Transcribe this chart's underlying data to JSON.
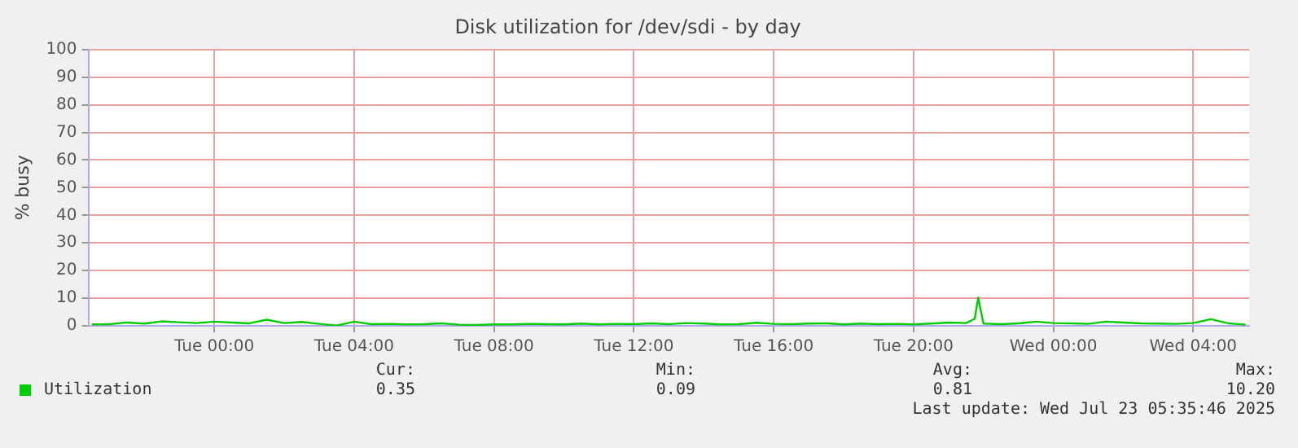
{
  "chart_data": {
    "type": "line",
    "title": "Disk utilization for /dev/sdi - by day",
    "ylabel": "% busy",
    "x": [
      "2025-07-21T20:30",
      "2025-07-21T21:00",
      "2025-07-21T21:30",
      "2025-07-21T22:00",
      "2025-07-21T22:30",
      "2025-07-21T23:00",
      "2025-07-21T23:30",
      "2025-07-22T00:00",
      "2025-07-22T00:30",
      "2025-07-22T01:00",
      "2025-07-22T01:30",
      "2025-07-22T02:00",
      "2025-07-22T02:30",
      "2025-07-22T03:00",
      "2025-07-22T03:30",
      "2025-07-22T04:00",
      "2025-07-22T04:30",
      "2025-07-22T05:00",
      "2025-07-22T05:30",
      "2025-07-22T06:00",
      "2025-07-22T06:30",
      "2025-07-22T07:00",
      "2025-07-22T07:30",
      "2025-07-22T08:00",
      "2025-07-22T08:30",
      "2025-07-22T09:00",
      "2025-07-22T09:30",
      "2025-07-22T10:00",
      "2025-07-22T10:30",
      "2025-07-22T11:00",
      "2025-07-22T11:30",
      "2025-07-22T12:00",
      "2025-07-22T12:30",
      "2025-07-22T13:00",
      "2025-07-22T13:30",
      "2025-07-22T14:00",
      "2025-07-22T14:30",
      "2025-07-22T15:00",
      "2025-07-22T15:30",
      "2025-07-22T16:00",
      "2025-07-22T16:30",
      "2025-07-22T17:00",
      "2025-07-22T17:30",
      "2025-07-22T18:00",
      "2025-07-22T18:30",
      "2025-07-22T19:00",
      "2025-07-22T19:30",
      "2025-07-22T20:00",
      "2025-07-22T20:30",
      "2025-07-22T21:00",
      "2025-07-22T21:30",
      "2025-07-22T21:45",
      "2025-07-22T21:51",
      "2025-07-22T22:00",
      "2025-07-22T22:30",
      "2025-07-22T23:00",
      "2025-07-22T23:30",
      "2025-07-23T00:00",
      "2025-07-23T00:30",
      "2025-07-23T01:00",
      "2025-07-23T01:30",
      "2025-07-23T02:00",
      "2025-07-23T02:30",
      "2025-07-23T03:00",
      "2025-07-23T03:30",
      "2025-07-23T04:00",
      "2025-07-23T04:30",
      "2025-07-23T05:00",
      "2025-07-23T05:30"
    ],
    "series": [
      {
        "name": "Utilization",
        "color": "#00cc00",
        "values": [
          0.5,
          0.6,
          1.2,
          0.8,
          1.6,
          1.3,
          1.0,
          1.5,
          1.2,
          0.9,
          2.2,
          1.0,
          1.4,
          0.7,
          0.1,
          1.5,
          0.6,
          0.7,
          0.5,
          0.6,
          0.9,
          0.4,
          0.3,
          0.5,
          0.5,
          0.7,
          0.6,
          0.5,
          0.8,
          0.5,
          0.7,
          0.6,
          0.9,
          0.6,
          1.0,
          0.8,
          0.5,
          0.6,
          1.1,
          0.7,
          0.6,
          0.8,
          0.9,
          0.5,
          0.8,
          0.6,
          0.7,
          0.5,
          0.8,
          1.2,
          1.0,
          2.5,
          10.2,
          0.8,
          0.6,
          0.9,
          1.5,
          1.0,
          0.9,
          0.7,
          1.5,
          1.2,
          0.9,
          0.8,
          0.7,
          1.0,
          2.4,
          0.9,
          0.4
        ]
      }
    ],
    "xlim": [
      "2025-07-21T20:24",
      "2025-07-23T05:36"
    ],
    "xticks": [
      {
        "value": "2025-07-22T00:00",
        "label": "Tue 00:00"
      },
      {
        "value": "2025-07-22T04:00",
        "label": "Tue 04:00"
      },
      {
        "value": "2025-07-22T08:00",
        "label": "Tue 08:00"
      },
      {
        "value": "2025-07-22T12:00",
        "label": "Tue 12:00"
      },
      {
        "value": "2025-07-22T16:00",
        "label": "Tue 16:00"
      },
      {
        "value": "2025-07-22T20:00",
        "label": "Tue 20:00"
      },
      {
        "value": "2025-07-23T00:00",
        "label": "Wed 00:00"
      },
      {
        "value": "2025-07-23T04:00",
        "label": "Wed 04:00"
      }
    ],
    "ylim": [
      0,
      100
    ],
    "yticks": [
      0,
      10,
      20,
      30,
      40,
      50,
      60,
      70,
      80,
      90,
      100
    ],
    "grid": true,
    "legend": "bottom left",
    "marker": "none",
    "line_style": "solid",
    "annotations": [
      "Cur:",
      "0.35",
      "Min:",
      "0.09",
      "Avg:",
      "0.81",
      "Max:",
      "10.20",
      "Last update: Wed Jul 23 05:35:46 2025"
    ]
  }
}
